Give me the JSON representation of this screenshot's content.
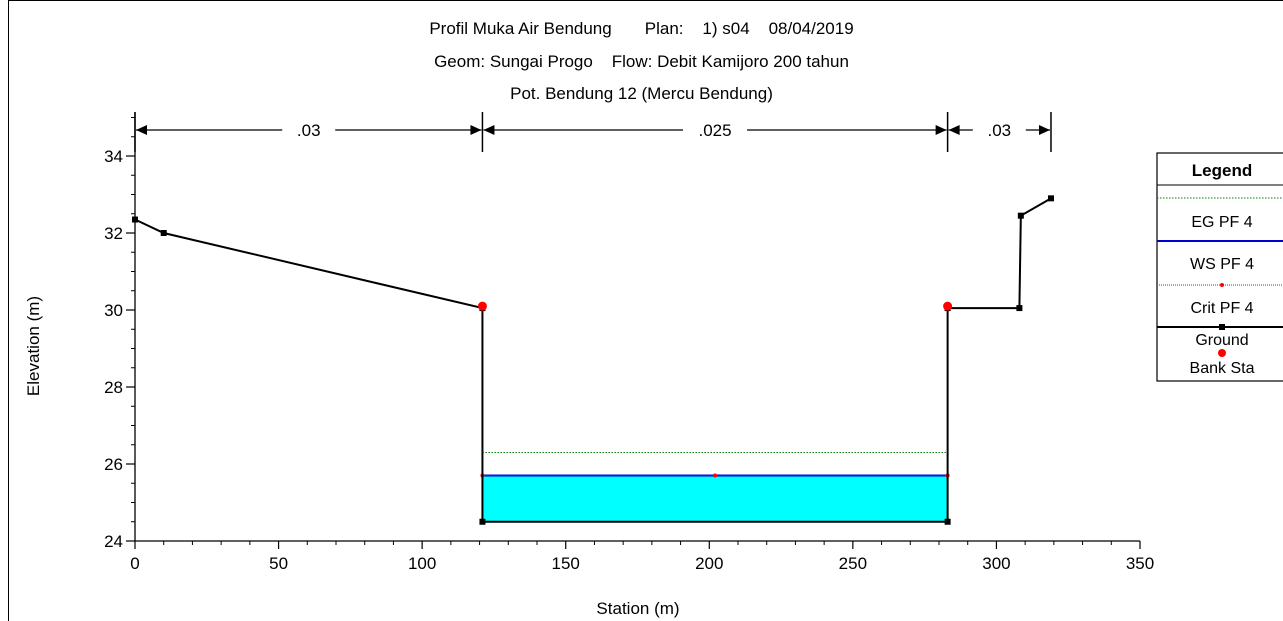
{
  "titles": {
    "line1": "Profil Muka Air Bendung       Plan:    1) s04    08/04/2019",
    "line2": "Geom: Sungai Progo    Flow: Debit Kamijoro 200 tahun",
    "line3": "Pot. Bendung 12 (Mercu Bendung)"
  },
  "colors": {
    "water_fill": "#00FFFF",
    "eg_line": "#008000",
    "ws_line": "#0000CC",
    "crit_line": "#FF0000",
    "ground_line": "#000000",
    "bank_sta": "#FF0000"
  },
  "chart_data": {
    "type": "line",
    "xlabel": "Station (m)",
    "ylabel": "Elevation (m)",
    "xlim": [
      0,
      350
    ],
    "ylim": [
      24,
      35
    ],
    "x_ticks": [
      "0",
      "50",
      "100",
      "150",
      "200",
      "250",
      "300",
      "350"
    ],
    "y_ticks": [
      "24",
      "26",
      "28",
      "30",
      "32",
      "34"
    ],
    "x_tick_values": [
      0,
      50,
      100,
      150,
      200,
      250,
      300,
      350
    ],
    "y_tick_values": [
      24,
      26,
      28,
      30,
      32,
      34
    ],
    "grid": false,
    "legend_position": "right",
    "legend_title": "Legend",
    "manning": [
      {
        "label": ".03",
        "from": 0,
        "to": 121
      },
      {
        "label": ".025",
        "from": 121,
        "to": 283
      },
      {
        "label": ".03",
        "from": 283,
        "to": 319
      }
    ],
    "series": [
      {
        "name": "EG PF 4",
        "x": [
          121,
          283
        ],
        "y": [
          26.3,
          26.3
        ]
      },
      {
        "name": "WS PF 4",
        "x": [
          121,
          283
        ],
        "y": [
          25.7,
          25.7
        ]
      },
      {
        "name": "Crit PF 4",
        "x": [
          121,
          202,
          283
        ],
        "y": [
          25.7,
          25.7,
          25.7
        ]
      },
      {
        "name": "Ground",
        "x": [
          0,
          10,
          121,
          121,
          283,
          283,
          308,
          308.5,
          319
        ],
        "y": [
          32.35,
          32.0,
          30.05,
          24.5,
          24.5,
          30.05,
          30.05,
          32.45,
          32.9
        ]
      },
      {
        "name": "Bank Sta",
        "x": [
          121,
          283
        ],
        "y": [
          30.1,
          30.1
        ]
      }
    ]
  }
}
